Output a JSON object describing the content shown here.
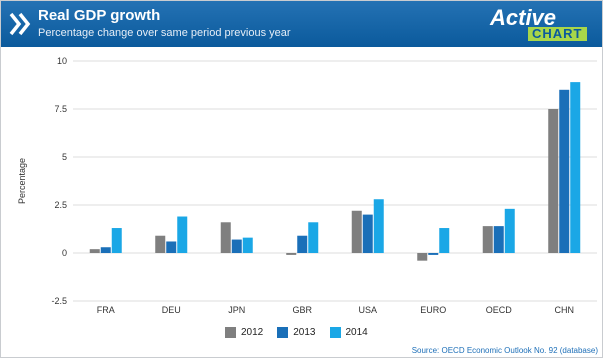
{
  "header": {
    "title": "Real GDP growth",
    "subtitle": "Percentage change over same period previous year",
    "logo_top": "Active",
    "logo_bottom": "CHART"
  },
  "source": "Source: OECD Economic Outlook No. 92 (database)",
  "chart_data": {
    "type": "bar",
    "title": "Real GDP growth",
    "subtitle": "Percentage change over same period previous year",
    "xlabel": "",
    "ylabel": "Percentage",
    "ylim": [
      -2.5,
      10
    ],
    "yticks": [
      "-2.5",
      "0",
      "2.5",
      "5",
      "7.5",
      "10"
    ],
    "grid": true,
    "legend_position": "bottom",
    "categories": [
      "FRA",
      "DEU",
      "JPN",
      "GBR",
      "USA",
      "EURO",
      "OECD",
      "CHN"
    ],
    "series": [
      {
        "name": "2012",
        "color": "#7f7f7f",
        "values": [
          0.2,
          0.9,
          1.6,
          -0.1,
          2.2,
          -0.4,
          1.4,
          7.5
        ]
      },
      {
        "name": "2013",
        "color": "#1a6fb8",
        "values": [
          0.3,
          0.6,
          0.7,
          0.9,
          2.0,
          -0.1,
          1.4,
          8.5
        ]
      },
      {
        "name": "2014",
        "color": "#1aa7e6",
        "values": [
          1.3,
          1.9,
          0.8,
          1.6,
          2.8,
          1.3,
          2.3,
          8.9
        ]
      }
    ]
  }
}
